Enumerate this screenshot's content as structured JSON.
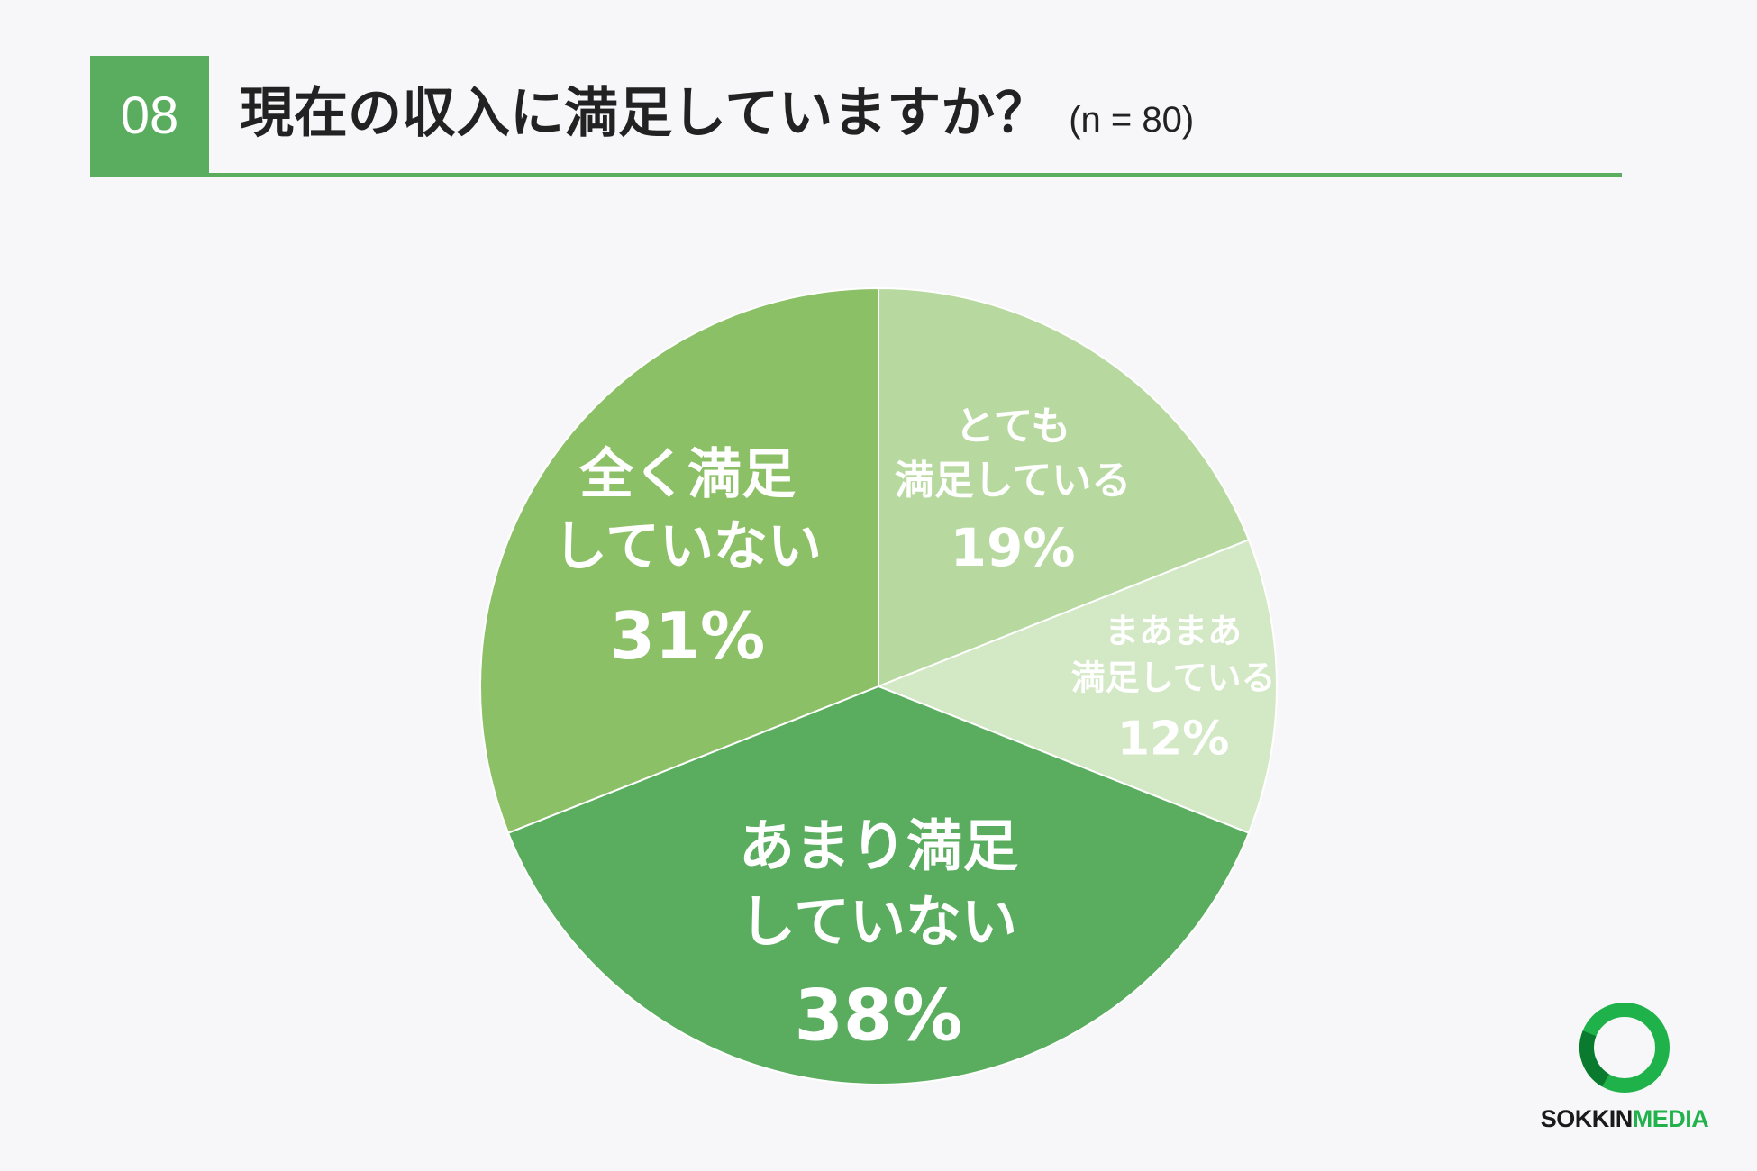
{
  "header": {
    "number": "08",
    "title": "現在の収入に満足していますか？",
    "sample": "(n = 80)"
  },
  "colors": {
    "accent": "#5aad5e",
    "slices": [
      "#b7d9a0",
      "#d3e8c4",
      "#5aad5e",
      "#8cc067"
    ]
  },
  "chart_data": {
    "type": "pie",
    "unit": "%",
    "slices": [
      {
        "label_lines": [
          "とても",
          "満足している"
        ],
        "value": 19,
        "value_text": "19%"
      },
      {
        "label_lines": [
          "まあまあ",
          "満足している"
        ],
        "value": 12,
        "value_text": "12%"
      },
      {
        "label_lines": [
          "あまり満足",
          "していない"
        ],
        "value": 38,
        "value_text": "38%"
      },
      {
        "label_lines": [
          "全く満足",
          "していない"
        ],
        "value": 31,
        "value_text": "31%"
      }
    ]
  },
  "logo": {
    "text_dark": "SOKKIN",
    "text_green": "MEDIA"
  }
}
